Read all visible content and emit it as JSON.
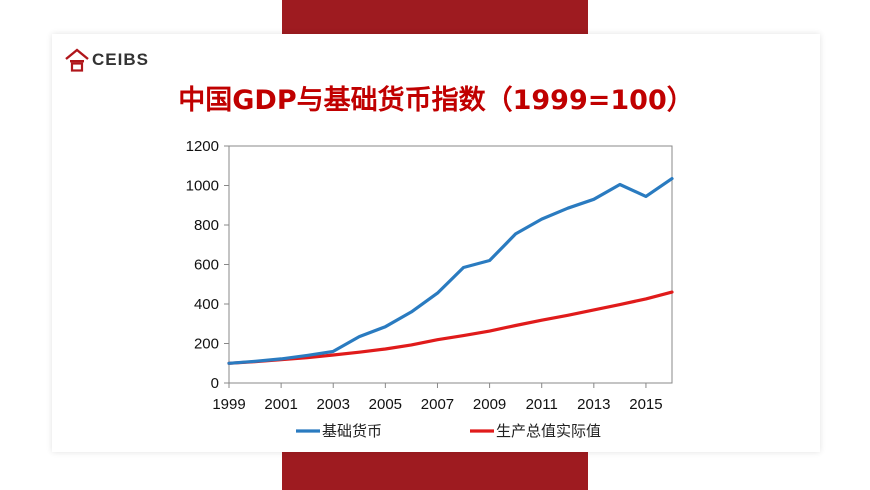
{
  "logo": {
    "text": "CEIBS"
  },
  "colors": {
    "band": "#9e1b20",
    "title": "#c00000",
    "money": "#2a7bc0",
    "gdp": "#e01b1b"
  },
  "chart_data": {
    "type": "line",
    "title": "中国GDP与基础货币指数（1999=100）",
    "x": [
      1999,
      2000,
      2001,
      2002,
      2003,
      2004,
      2005,
      2006,
      2007,
      2008,
      2009,
      2010,
      2011,
      2012,
      2013,
      2014,
      2015,
      2016
    ],
    "xticks": [
      "1999",
      "2001",
      "2003",
      "2005",
      "2007",
      "2009",
      "2011",
      "2013",
      "2015"
    ],
    "yticks": [
      "0",
      "200",
      "400",
      "600",
      "800",
      "1000",
      "1200"
    ],
    "xlim": [
      1999,
      2016
    ],
    "ylim": [
      0,
      1200
    ],
    "grid": false,
    "legend_position": "bottom",
    "series": [
      {
        "name": "基础货币",
        "color": "#2a7bc0",
        "values": [
          100,
          110,
          122,
          140,
          160,
          235,
          285,
          360,
          455,
          585,
          620,
          755,
          830,
          885,
          930,
          1005,
          945,
          1035
        ]
      },
      {
        "name": "生产总值实际值",
        "color": "#e01b1b",
        "values": [
          100,
          108,
          118,
          128,
          142,
          156,
          172,
          193,
          219,
          240,
          263,
          291,
          318,
          343,
          370,
          397,
          426,
          460
        ]
      }
    ]
  }
}
